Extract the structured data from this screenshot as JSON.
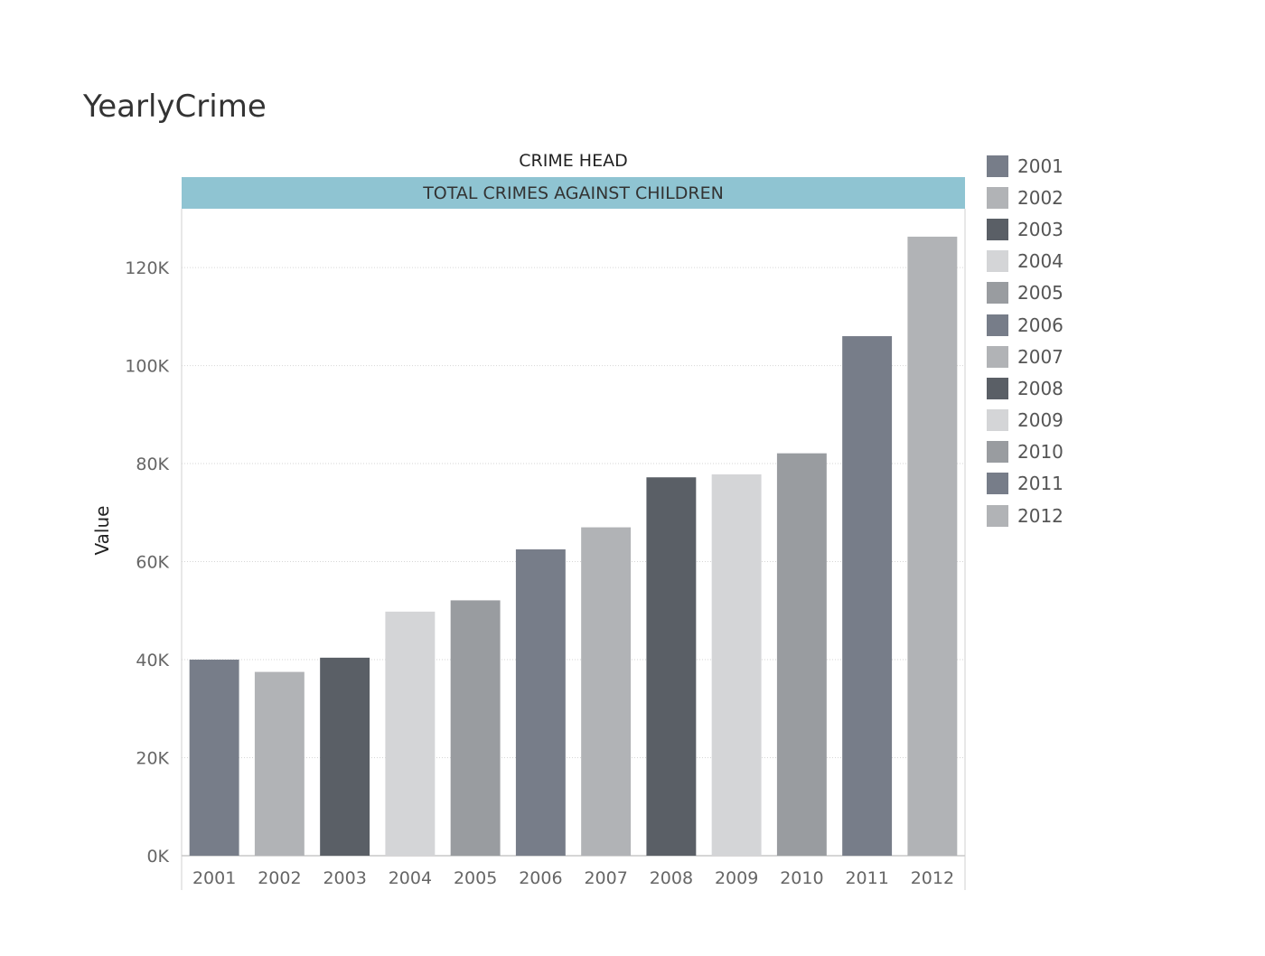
{
  "title": "YearlyCrime",
  "chart_data": {
    "type": "bar",
    "header_label": "CRIME HEAD",
    "header_value": "TOTAL CRIMES AGAINST CHILDREN",
    "ylabel": "Value",
    "xlabel": "",
    "categories": [
      "2001",
      "2002",
      "2003",
      "2004",
      "2005",
      "2006",
      "2007",
      "2008",
      "2009",
      "2010",
      "2011",
      "2012"
    ],
    "values": [
      40000,
      37500,
      40400,
      49800,
      52100,
      62500,
      67000,
      77200,
      77800,
      82100,
      106000,
      126300
    ],
    "colors": [
      "#777d89",
      "#b1b3b6",
      "#5a5f66",
      "#d4d5d7",
      "#999ca0",
      "#777d89",
      "#b1b3b6",
      "#5a5f66",
      "#d4d5d7",
      "#999ca0",
      "#777d89",
      "#b1b3b6"
    ],
    "ylim": [
      0,
      132000
    ],
    "yticks": [
      0,
      20000,
      40000,
      60000,
      80000,
      100000,
      120000
    ],
    "ytick_labels": [
      "0K",
      "20K",
      "40K",
      "60K",
      "80K",
      "100K",
      "120K"
    ],
    "grid": true,
    "legend": {
      "position": "right",
      "entries": [
        "2001",
        "2002",
        "2003",
        "2004",
        "2005",
        "2006",
        "2007",
        "2008",
        "2009",
        "2010",
        "2011",
        "2012"
      ]
    }
  }
}
